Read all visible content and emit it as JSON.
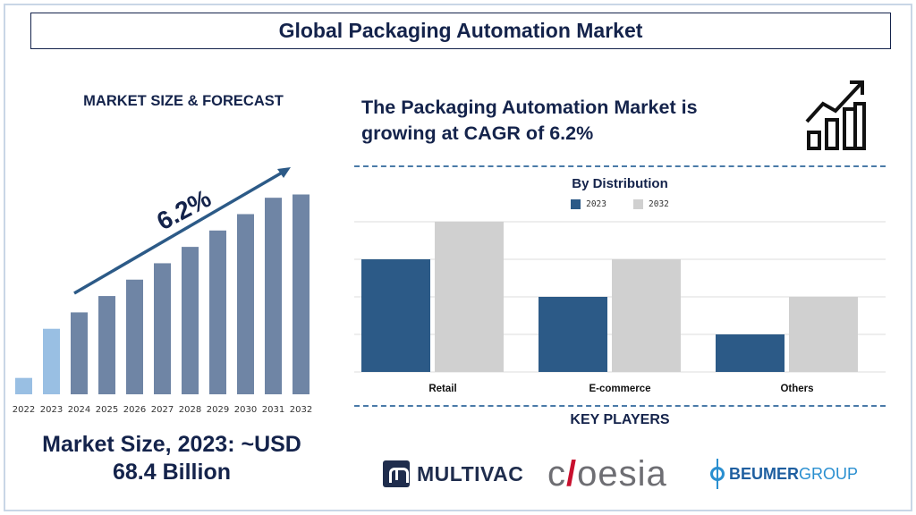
{
  "header": {
    "title": "Global Packaging Automation Market"
  },
  "left_panel": {
    "heading": "MARKET SIZE & FORECAST",
    "cagr_label": "6.2%",
    "market_size_line1": "Market Size, 2023: ~USD",
    "market_size_line2": "68.4 Billion"
  },
  "right_panel": {
    "cagr_line1": "The Packaging Automation Market is",
    "cagr_line2": "growing at CAGR of 6.2%",
    "growth_icon": "growth-chart-icon",
    "key_players_heading": "KEY PLAYERS",
    "key_players": [
      {
        "name": "MULTIVAC",
        "icon": "multivac-logo"
      },
      {
        "name": "coesia",
        "icon": "coesia-logo"
      },
      {
        "name": "BEUMERGROUP",
        "icon": "beumer-logo"
      }
    ]
  },
  "colors": {
    "navy": "#14234b",
    "forecast_bar": "#6f85a5",
    "highlight_bar": "#99bfe3",
    "series_2023": "#2c5a87",
    "series_2032": "#d0d0d0",
    "dashed_divider": "#4a7aa8"
  },
  "chart_data": [
    {
      "type": "bar",
      "title": "",
      "categories": [
        "2022",
        "2023",
        "2024",
        "2025",
        "2026",
        "2027",
        "2028",
        "2029",
        "2030",
        "2031",
        "2032"
      ],
      "values": [
        1,
        4,
        5,
        6,
        7,
        8,
        9,
        10,
        11,
        12,
        12.2
      ],
      "highlight_categories": [
        "2022",
        "2023"
      ],
      "trend_arrow_label": "6.2%",
      "xlabel": "",
      "ylabel": "",
      "ylim": [
        0,
        12.5
      ],
      "grid": false,
      "y_axis_shown": false
    },
    {
      "type": "bar",
      "title": "By Distribution",
      "categories": [
        "Retail",
        "E-commerce",
        "Others"
      ],
      "series": [
        {
          "name": "2023",
          "values": [
            3,
            2,
            1
          ]
        },
        {
          "name": "2032",
          "values": [
            4,
            3,
            2
          ]
        }
      ],
      "xlabel": "",
      "ylabel": "",
      "ylim": [
        0,
        4
      ],
      "grid": true,
      "legend_position": "top-center",
      "y_axis_shown": false
    }
  ]
}
